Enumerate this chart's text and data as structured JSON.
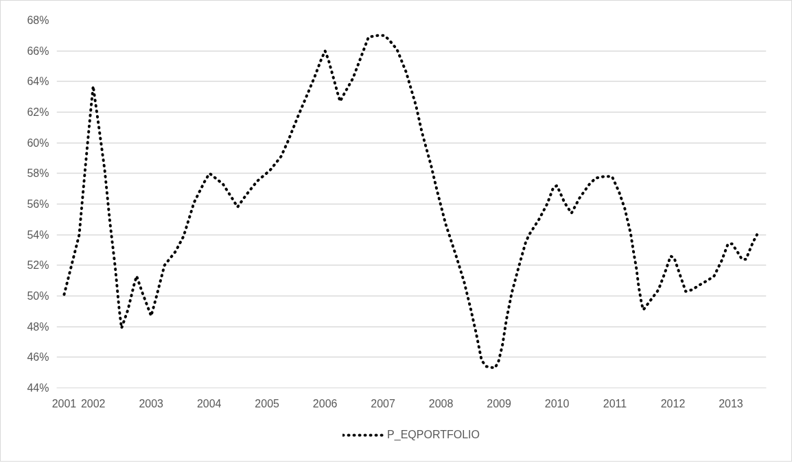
{
  "chart_data": {
    "type": "line",
    "x": [
      2001.5,
      2001.76,
      2001.87,
      2001.94,
      2002.0,
      2002.1,
      2002.2,
      2002.29,
      2002.38,
      2002.45,
      2002.49,
      2002.6,
      2002.71,
      2002.75,
      2002.85,
      2003.0,
      2003.08,
      2003.23,
      2003.42,
      2003.56,
      2003.74,
      2003.94,
      2004.01,
      2004.24,
      2004.41,
      2004.49,
      2004.64,
      2004.83,
      2005.05,
      2005.24,
      2005.36,
      2005.53,
      2005.71,
      2005.82,
      2005.93,
      2006.0,
      2006.06,
      2006.14,
      2006.22,
      2006.26,
      2006.33,
      2006.48,
      2006.59,
      2006.7,
      2006.75,
      2006.9,
      2007.03,
      2007.13,
      2007.24,
      2007.4,
      2007.57,
      2007.67,
      2007.83,
      2007.93,
      2008.08,
      2008.27,
      2008.4,
      2008.51,
      2008.61,
      2008.7,
      2008.78,
      2008.93,
      2008.99,
      2009.06,
      2009.13,
      2009.22,
      2009.34,
      2009.46,
      2009.52,
      2009.69,
      2009.83,
      2009.94,
      2010.0,
      2010.13,
      2010.25,
      2010.39,
      2010.56,
      2010.67,
      2010.81,
      2010.95,
      2011.07,
      2011.17,
      2011.27,
      2011.32,
      2011.37,
      2011.41,
      2011.46,
      2011.49,
      2011.57,
      2011.75,
      2011.86,
      2011.96,
      2012.02,
      2012.12,
      2012.22,
      2012.33,
      2012.45,
      2012.59,
      2012.71,
      2012.84,
      2012.95,
      2013.02,
      2013.11,
      2013.19,
      2013.26,
      2013.38,
      2013.45
    ],
    "series": [
      {
        "name": "P_EQPORTFOLIO",
        "color": "#000000",
        "values": [
          50.1,
          54.0,
          58.6,
          61.4,
          63.7,
          61.0,
          58.2,
          54.8,
          51.9,
          49.1,
          47.9,
          49.1,
          50.8,
          51.3,
          50.2,
          48.7,
          49.8,
          52.0,
          52.9,
          53.9,
          56.1,
          57.6,
          58.0,
          57.3,
          56.3,
          55.8,
          56.6,
          57.5,
          58.2,
          59.1,
          60.1,
          61.7,
          63.3,
          64.3,
          65.4,
          66.0,
          65.4,
          64.3,
          63.2,
          62.7,
          63.2,
          64.2,
          65.3,
          66.4,
          66.9,
          67.0,
          67.0,
          66.6,
          66.1,
          64.6,
          62.4,
          60.7,
          58.5,
          56.9,
          54.7,
          52.5,
          50.9,
          49.2,
          47.5,
          45.8,
          45.4,
          45.3,
          45.7,
          46.8,
          48.5,
          50.2,
          51.9,
          53.5,
          54.0,
          55.0,
          56.0,
          57.1,
          57.2,
          56.1,
          55.4,
          56.4,
          57.3,
          57.7,
          57.8,
          57.8,
          56.8,
          55.7,
          54.1,
          52.9,
          51.8,
          50.6,
          49.5,
          49.1,
          49.5,
          50.4,
          51.5,
          52.6,
          52.5,
          51.4,
          50.3,
          50.4,
          50.7,
          51.0,
          51.3,
          52.3,
          53.4,
          53.4,
          52.9,
          52.4,
          52.4,
          53.5,
          54.0
        ]
      }
    ],
    "xlim": [
      2001.37,
      2013.61
    ],
    "xticks": [
      {
        "value": 2001.5,
        "label": "2001"
      },
      2002,
      2003,
      2004,
      2005,
      2006,
      2007,
      2008,
      2009,
      2010,
      2011,
      2012,
      2013
    ],
    "ylim": [
      44,
      68
    ],
    "yticks": [
      {
        "value": 44,
        "label": "44%"
      },
      {
        "value": 46,
        "label": "46%"
      },
      {
        "value": 48,
        "label": "48%"
      },
      {
        "value": 50,
        "label": "50%"
      },
      {
        "value": 52,
        "label": "52%"
      },
      {
        "value": 54,
        "label": "54%"
      },
      {
        "value": 56,
        "label": "56%"
      },
      {
        "value": 58,
        "label": "58%"
      },
      {
        "value": 60,
        "label": "60%"
      },
      {
        "value": 62,
        "label": "62%"
      },
      {
        "value": 64,
        "label": "64%"
      },
      {
        "value": 66,
        "label": "66%"
      },
      {
        "value": 68,
        "label": "68%"
      }
    ],
    "grid": "y",
    "legend": "bottom",
    "line_style": "dotted",
    "marker": "none"
  }
}
